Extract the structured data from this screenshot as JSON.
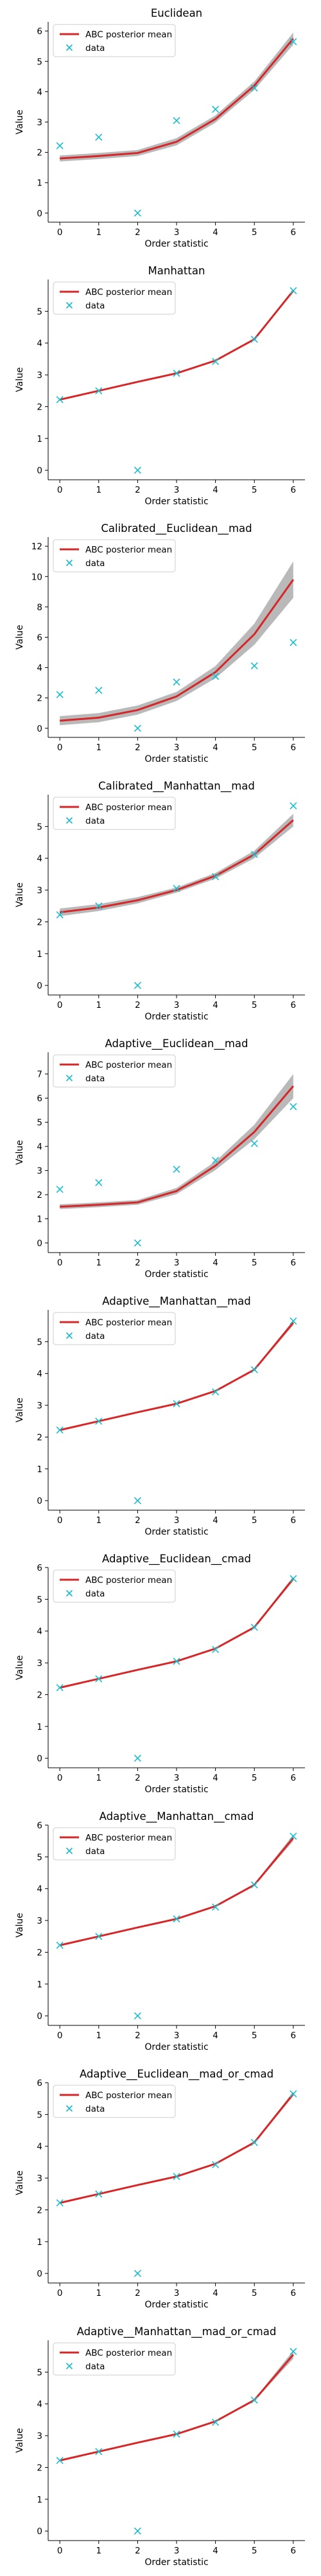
{
  "figure": {
    "x_values": [
      0,
      1,
      2,
      3,
      4,
      5,
      6
    ],
    "xlabel": "Order statistic",
    "ylabel": "Value",
    "legend": {
      "mean_label": "ABC posterior mean",
      "data_label": "data",
      "placement": "upper left"
    },
    "colors": {
      "posterior_mean": "#d62728",
      "posterior_samples": "#7f7f7f",
      "data": "#17becf"
    }
  },
  "chart_data": [
    {
      "type": "line",
      "title": "Euclidean",
      "xlabel": "Order statistic",
      "ylabel": "Value",
      "xlim": [
        -0.3,
        6.3
      ],
      "ylim": [
        -0.3,
        6.3
      ],
      "yticks": [
        0,
        1,
        2,
        3,
        4,
        5,
        6
      ],
      "x": [
        0,
        1,
        2,
        3,
        4,
        5,
        6
      ],
      "series": [
        {
          "name": "ABC posterior mean",
          "values": [
            1.8,
            1.88,
            1.98,
            2.35,
            3.1,
            4.2,
            5.75
          ]
        },
        {
          "name": "data",
          "values": [
            2.22,
            2.5,
            0.0,
            3.05,
            3.42,
            4.12,
            5.65
          ]
        }
      ],
      "band": {
        "low": [
          1.7,
          1.78,
          1.88,
          2.23,
          2.98,
          4.06,
          5.55
        ],
        "high": [
          1.9,
          1.98,
          2.08,
          2.47,
          3.22,
          4.34,
          5.95
        ]
      }
    },
    {
      "type": "line",
      "title": "Manhattan",
      "xlabel": "Order statistic",
      "ylabel": "Value",
      "xlim": [
        -0.3,
        6.3
      ],
      "ylim": [
        -0.3,
        6.0
      ],
      "yticks": [
        0,
        1,
        2,
        3,
        4,
        5
      ],
      "x": [
        0,
        1,
        2,
        3,
        4,
        5,
        6
      ],
      "series": [
        {
          "name": "ABC posterior mean",
          "values": [
            2.22,
            2.5,
            2.78,
            3.05,
            3.45,
            4.12,
            5.65
          ]
        },
        {
          "name": "data",
          "values": [
            2.22,
            2.5,
            0.0,
            3.05,
            3.42,
            4.12,
            5.65
          ]
        }
      ],
      "band": {
        "low": [
          2.2,
          2.48,
          2.76,
          3.03,
          3.42,
          4.09,
          5.6
        ],
        "high": [
          2.24,
          2.52,
          2.8,
          3.07,
          3.48,
          4.15,
          5.7
        ]
      }
    },
    {
      "type": "line",
      "title": "Calibrated__Euclidean__mad",
      "xlabel": "Order statistic",
      "ylabel": "Value",
      "xlim": [
        -0.3,
        6.3
      ],
      "ylim": [
        -0.6,
        12.6
      ],
      "yticks": [
        0,
        2,
        4,
        6,
        8,
        10,
        12
      ],
      "x": [
        0,
        1,
        2,
        3,
        4,
        5,
        6
      ],
      "series": [
        {
          "name": "ABC posterior mean",
          "values": [
            0.5,
            0.7,
            1.2,
            2.1,
            3.7,
            6.2,
            9.8
          ]
        },
        {
          "name": "data",
          "values": [
            2.22,
            2.5,
            0.0,
            3.05,
            3.42,
            4.12,
            5.65
          ]
        }
      ],
      "band": {
        "low": [
          0.2,
          0.4,
          0.9,
          1.8,
          3.3,
          5.5,
          8.6
        ],
        "high": [
          0.8,
          1.0,
          1.5,
          2.4,
          4.1,
          6.9,
          11.0
        ]
      }
    },
    {
      "type": "line",
      "title": "Calibrated__Manhattan__mad",
      "xlabel": "Order statistic",
      "ylabel": "Value",
      "xlim": [
        -0.3,
        6.3
      ],
      "ylim": [
        -0.3,
        6.0
      ],
      "yticks": [
        0,
        1,
        2,
        3,
        4,
        5
      ],
      "x": [
        0,
        1,
        2,
        3,
        4,
        5,
        6
      ],
      "series": [
        {
          "name": "ABC posterior mean",
          "values": [
            2.3,
            2.45,
            2.68,
            3.0,
            3.45,
            4.12,
            5.2
          ]
        },
        {
          "name": "data",
          "values": [
            2.22,
            2.5,
            0.0,
            3.05,
            3.42,
            4.12,
            5.65
          ]
        }
      ],
      "band": {
        "low": [
          2.18,
          2.34,
          2.58,
          2.92,
          3.36,
          4.0,
          5.0
        ],
        "high": [
          2.42,
          2.56,
          2.78,
          3.08,
          3.54,
          4.24,
          5.4
        ]
      }
    },
    {
      "type": "line",
      "title": "Adaptive__Euclidean__mad",
      "xlabel": "Order statistic",
      "ylabel": "Value",
      "xlim": [
        -0.3,
        6.3
      ],
      "ylim": [
        -0.4,
        7.9
      ],
      "yticks": [
        0,
        1,
        2,
        3,
        4,
        5,
        6,
        7
      ],
      "x": [
        0,
        1,
        2,
        3,
        4,
        5,
        6
      ],
      "series": [
        {
          "name": "ABC posterior mean",
          "values": [
            1.5,
            1.58,
            1.68,
            2.15,
            3.2,
            4.6,
            6.5
          ]
        },
        {
          "name": "data",
          "values": [
            2.22,
            2.5,
            0.0,
            3.05,
            3.42,
            4.12,
            5.65
          ]
        }
      ],
      "band": {
        "low": [
          1.4,
          1.48,
          1.58,
          2.02,
          3.02,
          4.3,
          6.0
        ],
        "high": [
          1.6,
          1.68,
          1.78,
          2.28,
          3.38,
          4.9,
          7.0
        ]
      }
    },
    {
      "type": "line",
      "title": "Adaptive__Manhattan__mad",
      "xlabel": "Order statistic",
      "ylabel": "Value",
      "xlim": [
        -0.3,
        6.3
      ],
      "ylim": [
        -0.3,
        6.0
      ],
      "yticks": [
        0,
        1,
        2,
        3,
        4,
        5
      ],
      "x": [
        0,
        1,
        2,
        3,
        4,
        5,
        6
      ],
      "series": [
        {
          "name": "ABC posterior mean",
          "values": [
            2.22,
            2.5,
            2.78,
            3.05,
            3.45,
            4.12,
            5.6
          ]
        },
        {
          "name": "data",
          "values": [
            2.22,
            2.5,
            0.0,
            3.05,
            3.42,
            4.12,
            5.65
          ]
        }
      ],
      "band": {
        "low": [
          2.2,
          2.48,
          2.76,
          3.03,
          3.42,
          4.09,
          5.52
        ],
        "high": [
          2.24,
          2.52,
          2.8,
          3.07,
          3.48,
          4.15,
          5.68
        ]
      }
    },
    {
      "type": "line",
      "title": "Adaptive__Euclidean__cmad",
      "xlabel": "Order statistic",
      "ylabel": "Value",
      "xlim": [
        -0.3,
        6.3
      ],
      "ylim": [
        -0.3,
        6.0
      ],
      "yticks": [
        0,
        1,
        2,
        3,
        4,
        5,
        6
      ],
      "x": [
        0,
        1,
        2,
        3,
        4,
        5,
        6
      ],
      "series": [
        {
          "name": "ABC posterior mean",
          "values": [
            2.22,
            2.5,
            2.78,
            3.05,
            3.45,
            4.12,
            5.65
          ]
        },
        {
          "name": "data",
          "values": [
            2.22,
            2.5,
            0.0,
            3.05,
            3.42,
            4.12,
            5.65
          ]
        }
      ],
      "band": {
        "low": [
          2.2,
          2.48,
          2.76,
          3.03,
          3.42,
          4.09,
          5.58
        ],
        "high": [
          2.24,
          2.52,
          2.8,
          3.07,
          3.48,
          4.15,
          5.72
        ]
      }
    },
    {
      "type": "line",
      "title": "Adaptive__Manhattan__cmad",
      "xlabel": "Order statistic",
      "ylabel": "Value",
      "xlim": [
        -0.3,
        6.3
      ],
      "ylim": [
        -0.3,
        6.0
      ],
      "yticks": [
        0,
        1,
        2,
        3,
        4,
        5,
        6
      ],
      "x": [
        0,
        1,
        2,
        3,
        4,
        5,
        6
      ],
      "series": [
        {
          "name": "ABC posterior mean",
          "values": [
            2.22,
            2.5,
            2.78,
            3.05,
            3.45,
            4.12,
            5.6
          ]
        },
        {
          "name": "data",
          "values": [
            2.22,
            2.5,
            0.0,
            3.05,
            3.42,
            4.12,
            5.65
          ]
        }
      ],
      "band": {
        "low": [
          2.2,
          2.48,
          2.76,
          3.03,
          3.42,
          4.09,
          5.5
        ],
        "high": [
          2.24,
          2.52,
          2.8,
          3.07,
          3.48,
          4.15,
          5.7
        ]
      }
    },
    {
      "type": "line",
      "title": "Adaptive__Euclidean__mad_or_cmad",
      "xlabel": "Order statistic",
      "ylabel": "Value",
      "xlim": [
        -0.3,
        6.3
      ],
      "ylim": [
        -0.3,
        6.0
      ],
      "yticks": [
        0,
        1,
        2,
        3,
        4,
        5,
        6
      ],
      "x": [
        0,
        1,
        2,
        3,
        4,
        5,
        6
      ],
      "series": [
        {
          "name": "ABC posterior mean",
          "values": [
            2.22,
            2.5,
            2.78,
            3.05,
            3.45,
            4.12,
            5.65
          ]
        },
        {
          "name": "data",
          "values": [
            2.22,
            2.5,
            0.0,
            3.05,
            3.42,
            4.12,
            5.65
          ]
        }
      ],
      "band": {
        "low": [
          2.2,
          2.48,
          2.76,
          3.03,
          3.42,
          4.09,
          5.58
        ],
        "high": [
          2.24,
          2.52,
          2.8,
          3.07,
          3.48,
          4.15,
          5.72
        ]
      }
    },
    {
      "type": "line",
      "title": "Adaptive__Manhattan__mad_or_cmad",
      "xlabel": "Order statistic",
      "ylabel": "Value",
      "xlim": [
        -0.3,
        6.3
      ],
      "ylim": [
        -0.3,
        6.0
      ],
      "yticks": [
        0,
        1,
        2,
        3,
        4,
        5
      ],
      "x": [
        0,
        1,
        2,
        3,
        4,
        5,
        6
      ],
      "series": [
        {
          "name": "ABC posterior mean",
          "values": [
            2.22,
            2.5,
            2.78,
            3.05,
            3.45,
            4.12,
            5.55
          ]
        },
        {
          "name": "data",
          "values": [
            2.22,
            2.5,
            0.0,
            3.05,
            3.42,
            4.12,
            5.65
          ]
        }
      ],
      "band": {
        "low": [
          2.2,
          2.48,
          2.76,
          3.03,
          3.42,
          4.09,
          5.42
        ],
        "high": [
          2.24,
          2.52,
          2.8,
          3.07,
          3.48,
          4.15,
          5.68
        ]
      }
    }
  ]
}
